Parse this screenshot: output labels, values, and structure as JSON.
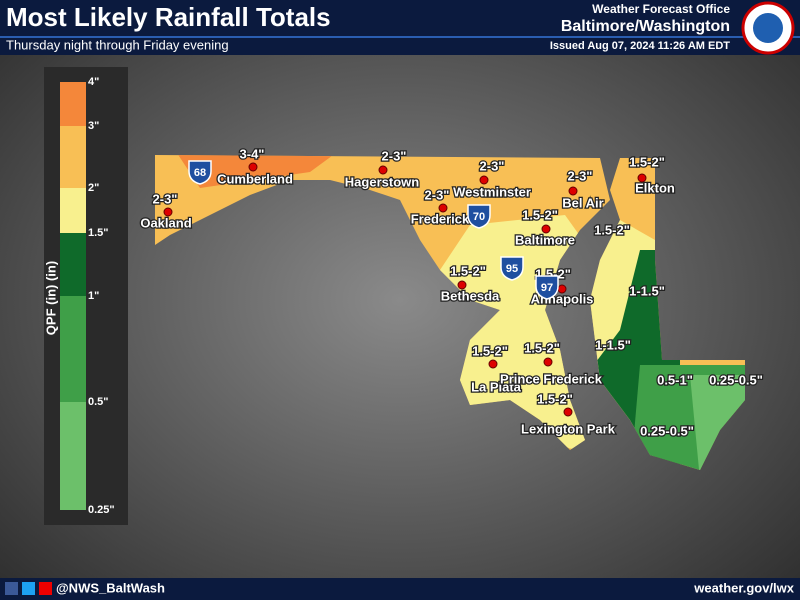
{
  "header": {
    "title": "Most Likely Rainfall Totals",
    "subtitle": "Thursday night through Friday evening",
    "office": "Weather Forecast Office",
    "office_name": "Baltimore/Washington",
    "issued": "Issued Aug 07, 2024 11:26 AM EDT"
  },
  "legend": {
    "label": "QPF (in) (in)",
    "ticks": [
      "4\"",
      "3\"",
      "2\"",
      "1.5\"",
      "1\"",
      "0.5\"",
      "0.25\""
    ],
    "bands": [
      {
        "color": "#f4873a"
      },
      {
        "color": "#f8bf55"
      },
      {
        "color": "#f8f08e"
      },
      {
        "color": "#0f6a2a"
      },
      {
        "color": "#3f9f48"
      },
      {
        "color": "#6cc06a"
      }
    ]
  },
  "map": {
    "amounts": [
      "3-4\"",
      "2-3\"",
      "2-3\"",
      "2-3\"",
      "2-3\"",
      "2-3\"",
      "1.5-2\"",
      "1.5-2\"",
      "1.5-2\"",
      "1.5-2\"",
      "1.5-2\"",
      "1-1.5\"",
      "1.5-2\"",
      "1.5-2\"",
      "1-1.5\"",
      "0.5-1\"",
      "0.25-0.5\"",
      "1.5-2\"",
      "0.25-0.5\""
    ],
    "cities": [
      "Cumberland",
      "Oakland",
      "Hagerstown",
      "Westminster",
      "Bel Air",
      "Elkton",
      "Frederick",
      "Baltimore",
      "Bethesda",
      "Annapolis",
      "La Plata",
      "Prince Frederick",
      "Lexington Park"
    ],
    "shields": [
      "68",
      "70",
      "95",
      "97"
    ]
  },
  "footer": {
    "handle": "@NWS_BaltWash",
    "url": "weather.gov/lwx"
  }
}
